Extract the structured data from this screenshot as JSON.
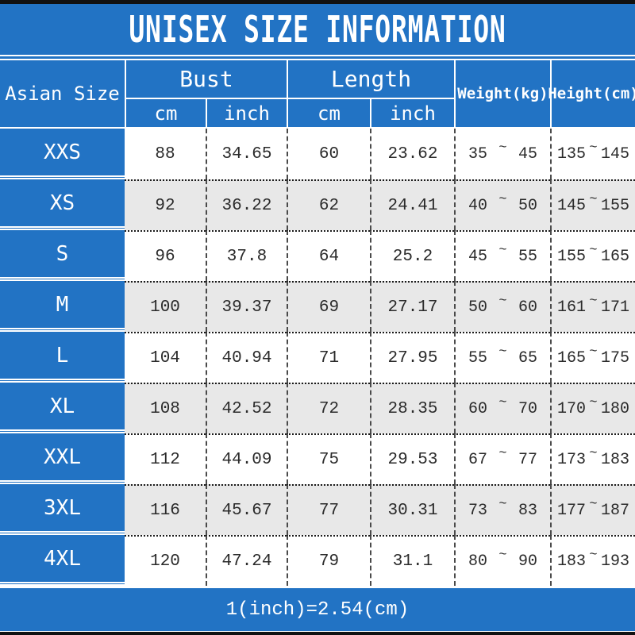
{
  "title": "UNISEX SIZE INFORMATION",
  "header": {
    "asian_size": "Asian Size",
    "bust": "Bust",
    "length": "Length",
    "weight": "Weight(kg)",
    "height": "Height(cm)",
    "cm": "cm",
    "inch": "inch"
  },
  "range_separator": "~",
  "rows": [
    {
      "size": "XXS",
      "bust_cm": "88",
      "bust_inch": "34.65",
      "length_cm": "60",
      "length_inch": "23.62",
      "weight_min": "35",
      "weight_max": "45",
      "height_min": "135",
      "height_max": "145"
    },
    {
      "size": "XS",
      "bust_cm": "92",
      "bust_inch": "36.22",
      "length_cm": "62",
      "length_inch": "24.41",
      "weight_min": "40",
      "weight_max": "50",
      "height_min": "145",
      "height_max": "155"
    },
    {
      "size": "S",
      "bust_cm": "96",
      "bust_inch": "37.8",
      "length_cm": "64",
      "length_inch": "25.2",
      "weight_min": "45",
      "weight_max": "55",
      "height_min": "155",
      "height_max": "165"
    },
    {
      "size": "M",
      "bust_cm": "100",
      "bust_inch": "39.37",
      "length_cm": "69",
      "length_inch": "27.17",
      "weight_min": "50",
      "weight_max": "60",
      "height_min": "161",
      "height_max": "171"
    },
    {
      "size": "L",
      "bust_cm": "104",
      "bust_inch": "40.94",
      "length_cm": "71",
      "length_inch": "27.95",
      "weight_min": "55",
      "weight_max": "65",
      "height_min": "165",
      "height_max": "175"
    },
    {
      "size": "XL",
      "bust_cm": "108",
      "bust_inch": "42.52",
      "length_cm": "72",
      "length_inch": "28.35",
      "weight_min": "60",
      "weight_max": "70",
      "height_min": "170",
      "height_max": "180"
    },
    {
      "size": "XXL",
      "bust_cm": "112",
      "bust_inch": "44.09",
      "length_cm": "75",
      "length_inch": "29.53",
      "weight_min": "67",
      "weight_max": "77",
      "height_min": "173",
      "height_max": "183"
    },
    {
      "size": "3XL",
      "bust_cm": "116",
      "bust_inch": "45.67",
      "length_cm": "77",
      "length_inch": "30.31",
      "weight_min": "73",
      "weight_max": "83",
      "height_min": "177",
      "height_max": "187"
    },
    {
      "size": "4XL",
      "bust_cm": "120",
      "bust_inch": "47.24",
      "length_cm": "79",
      "length_inch": "31.1",
      "weight_min": "80",
      "weight_max": "90",
      "height_min": "183",
      "height_max": "193"
    }
  ],
  "footer": "1(inch)=2.54(cm)",
  "colors": {
    "blue": "#2273c4",
    "row_alt": "#e8e8e8",
    "text": "#2a2a2a",
    "bar": "#111111"
  }
}
